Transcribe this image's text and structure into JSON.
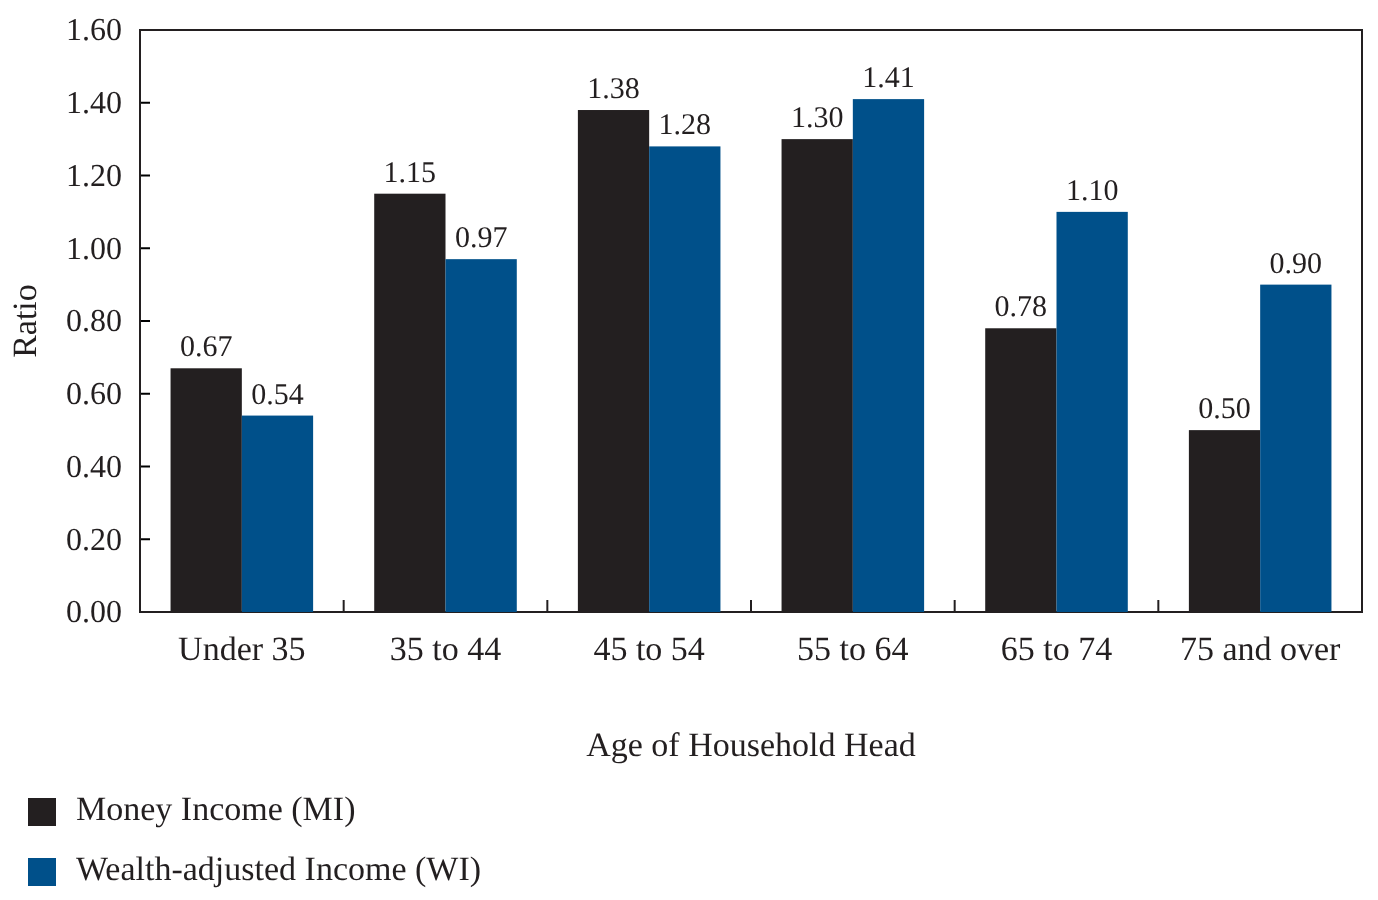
{
  "chart_data": {
    "type": "bar",
    "xlabel": "Age of Household Head",
    "ylabel": "Ratio",
    "categories": [
      "Under 35",
      "35 to 44",
      "45 to 54",
      "55 to 64",
      "65 to 74",
      "75 and over"
    ],
    "series": [
      {
        "name": "Money Income (MI)",
        "color": "#231f20",
        "values": [
          0.67,
          1.15,
          1.38,
          1.3,
          0.78,
          0.5
        ],
        "value_labels": [
          "0.67",
          "1.15",
          "1.38",
          "1.30",
          "0.78",
          "0.50"
        ]
      },
      {
        "name": "Wealth-adjusted Income (WI)",
        "color": "#00508a",
        "values": [
          0.54,
          0.97,
          1.28,
          1.41,
          1.1,
          0.9
        ],
        "value_labels": [
          "0.54",
          "0.97",
          "1.28",
          "1.41",
          "1.10",
          "0.90"
        ]
      }
    ],
    "ylim": [
      0,
      1.6
    ],
    "yticks": [
      {
        "value": 0,
        "label": "0.00"
      },
      {
        "value": 0.2,
        "label": "0.20"
      },
      {
        "value": 0.4,
        "label": "0.40"
      },
      {
        "value": 0.6,
        "label": "0.60"
      },
      {
        "value": 0.8,
        "label": "0.80"
      },
      {
        "value": 1.0,
        "label": "1.00"
      },
      {
        "value": 1.2,
        "label": "1.20"
      },
      {
        "value": 1.4,
        "label": "1.40"
      },
      {
        "value": 1.6,
        "label": "1.60"
      }
    ],
    "legend": "bottom",
    "grid": false
  }
}
